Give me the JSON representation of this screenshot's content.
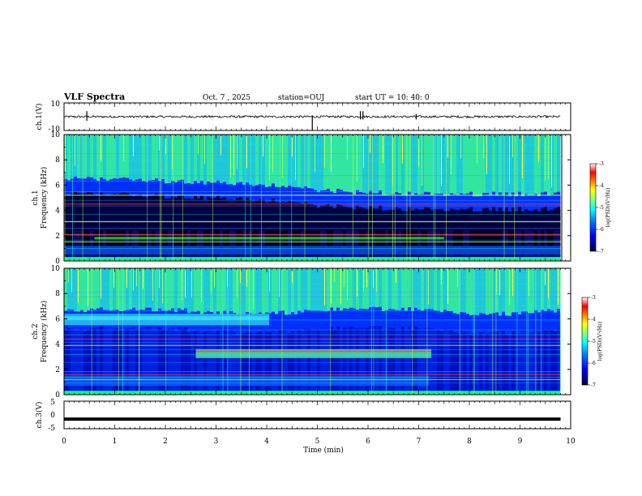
{
  "header": {
    "title": "VLF Spectra",
    "date": "Oct. 7 , 2025",
    "station": "station=OUJ",
    "start": "start UT = 10: 40: 0"
  },
  "chart_data": [
    {
      "type": "line",
      "name": "ch1-waveform",
      "ylabel": "ch.1(V)",
      "ylim": [
        -10,
        10
      ],
      "y_tick_labels": [
        "10",
        "-10"
      ],
      "baseline_value": 0,
      "note": "noise trace with spikes near 0.45, 4.9 and 5.9 min"
    },
    {
      "type": "heatmap",
      "name": "ch1-spectrogram",
      "ylabel": "ch.1\nFrequency (kHz)",
      "ylim": [
        0,
        10
      ],
      "y_ticks": [
        0,
        2,
        4,
        6,
        8,
        10
      ],
      "colorbar": {
        "label": "log(PSD)(V²/Hz)",
        "ticks": [
          "-3",
          "-4",
          "-5",
          "-6",
          "-7"
        ],
        "range": [
          -7,
          -3
        ]
      },
      "features": {
        "lower_edge_of_green_band_khz": [
          6.5,
          6.5,
          6.3,
          6.2,
          6.0,
          5.6,
          5.4,
          5.3,
          5.3
        ],
        "band_times_min": [
          0,
          1,
          2,
          3,
          4,
          5,
          6,
          7,
          9.8
        ],
        "bright_line_khz": [
          1.5,
          2.1,
          3.1,
          4.5,
          5.2
        ]
      }
    },
    {
      "type": "heatmap",
      "name": "ch2-spectrogram",
      "ylabel": "ch.2\nFrequency (kHz)",
      "ylim": [
        0,
        10
      ],
      "y_ticks": [
        0,
        2,
        4,
        6,
        8,
        10
      ],
      "colorbar": {
        "label": "log(PSD)(V²/Hz)",
        "ticks": [
          "-3",
          "-4",
          "-5",
          "-6",
          "-7"
        ],
        "range": [
          -7,
          -3
        ]
      },
      "features": {
        "cyan_block_0_to_4_min_khz": [
          5.5,
          6.4
        ],
        "green_block_2_6_to_7_2_min_khz": [
          2.9,
          3.6
        ],
        "bright_line_khz": [
          1.2,
          1.6,
          3.9,
          4.4
        ]
      }
    },
    {
      "type": "line",
      "name": "ch3-waveform",
      "ylabel": "ch.3(V)",
      "ylim": [
        -5,
        5
      ],
      "y_tick_labels": [
        "5",
        "0",
        "-5"
      ],
      "level_value": -1.5
    }
  ],
  "x_axis": {
    "label": "Time (min)",
    "range": [
      0,
      10
    ],
    "tick_labels": [
      "0",
      "1",
      "2",
      "3",
      "4",
      "5",
      "6",
      "7",
      "8",
      "9",
      "10"
    ],
    "data_end_min": 9.8
  },
  "colors": {
    "jet": [
      "#00007f",
      "#0000ff",
      "#007fff",
      "#00ffff",
      "#7fff7f",
      "#ffff00",
      "#ff7f00",
      "#ff0000",
      "#ffffff"
    ]
  }
}
